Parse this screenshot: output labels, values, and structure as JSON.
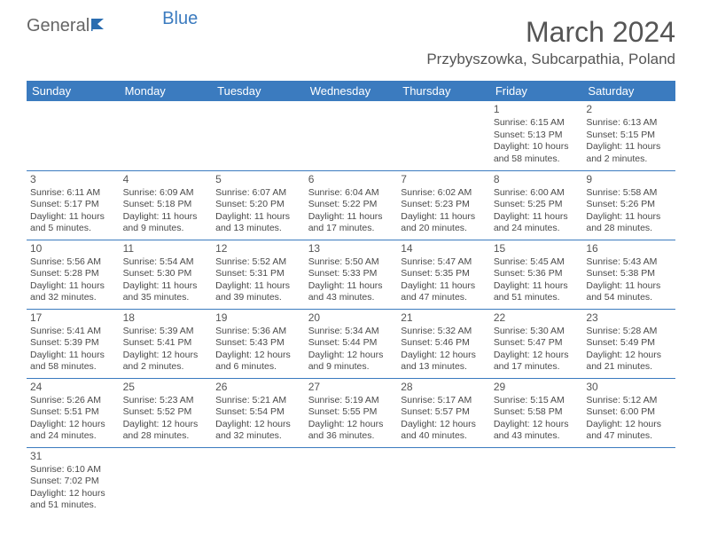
{
  "logo": {
    "part1": "General",
    "part2": "Blue"
  },
  "title": "March 2024",
  "location": "Przybyszowka, Subcarpathia, Poland",
  "colors": {
    "header_bg": "#3b7bbf",
    "header_text": "#ffffff",
    "border": "#3b7bbf",
    "body_text": "#4a4a4a",
    "title_text": "#555555",
    "background": "#ffffff"
  },
  "day_headers": [
    "Sunday",
    "Monday",
    "Tuesday",
    "Wednesday",
    "Thursday",
    "Friday",
    "Saturday"
  ],
  "weeks": [
    [
      null,
      null,
      null,
      null,
      null,
      {
        "n": "1",
        "rise": "Sunrise: 6:15 AM",
        "set": "Sunset: 5:13 PM",
        "dl1": "Daylight: 10 hours",
        "dl2": "and 58 minutes."
      },
      {
        "n": "2",
        "rise": "Sunrise: 6:13 AM",
        "set": "Sunset: 5:15 PM",
        "dl1": "Daylight: 11 hours",
        "dl2": "and 2 minutes."
      }
    ],
    [
      {
        "n": "3",
        "rise": "Sunrise: 6:11 AM",
        "set": "Sunset: 5:17 PM",
        "dl1": "Daylight: 11 hours",
        "dl2": "and 5 minutes."
      },
      {
        "n": "4",
        "rise": "Sunrise: 6:09 AM",
        "set": "Sunset: 5:18 PM",
        "dl1": "Daylight: 11 hours",
        "dl2": "and 9 minutes."
      },
      {
        "n": "5",
        "rise": "Sunrise: 6:07 AM",
        "set": "Sunset: 5:20 PM",
        "dl1": "Daylight: 11 hours",
        "dl2": "and 13 minutes."
      },
      {
        "n": "6",
        "rise": "Sunrise: 6:04 AM",
        "set": "Sunset: 5:22 PM",
        "dl1": "Daylight: 11 hours",
        "dl2": "and 17 minutes."
      },
      {
        "n": "7",
        "rise": "Sunrise: 6:02 AM",
        "set": "Sunset: 5:23 PM",
        "dl1": "Daylight: 11 hours",
        "dl2": "and 20 minutes."
      },
      {
        "n": "8",
        "rise": "Sunrise: 6:00 AM",
        "set": "Sunset: 5:25 PM",
        "dl1": "Daylight: 11 hours",
        "dl2": "and 24 minutes."
      },
      {
        "n": "9",
        "rise": "Sunrise: 5:58 AM",
        "set": "Sunset: 5:26 PM",
        "dl1": "Daylight: 11 hours",
        "dl2": "and 28 minutes."
      }
    ],
    [
      {
        "n": "10",
        "rise": "Sunrise: 5:56 AM",
        "set": "Sunset: 5:28 PM",
        "dl1": "Daylight: 11 hours",
        "dl2": "and 32 minutes."
      },
      {
        "n": "11",
        "rise": "Sunrise: 5:54 AM",
        "set": "Sunset: 5:30 PM",
        "dl1": "Daylight: 11 hours",
        "dl2": "and 35 minutes."
      },
      {
        "n": "12",
        "rise": "Sunrise: 5:52 AM",
        "set": "Sunset: 5:31 PM",
        "dl1": "Daylight: 11 hours",
        "dl2": "and 39 minutes."
      },
      {
        "n": "13",
        "rise": "Sunrise: 5:50 AM",
        "set": "Sunset: 5:33 PM",
        "dl1": "Daylight: 11 hours",
        "dl2": "and 43 minutes."
      },
      {
        "n": "14",
        "rise": "Sunrise: 5:47 AM",
        "set": "Sunset: 5:35 PM",
        "dl1": "Daylight: 11 hours",
        "dl2": "and 47 minutes."
      },
      {
        "n": "15",
        "rise": "Sunrise: 5:45 AM",
        "set": "Sunset: 5:36 PM",
        "dl1": "Daylight: 11 hours",
        "dl2": "and 51 minutes."
      },
      {
        "n": "16",
        "rise": "Sunrise: 5:43 AM",
        "set": "Sunset: 5:38 PM",
        "dl1": "Daylight: 11 hours",
        "dl2": "and 54 minutes."
      }
    ],
    [
      {
        "n": "17",
        "rise": "Sunrise: 5:41 AM",
        "set": "Sunset: 5:39 PM",
        "dl1": "Daylight: 11 hours",
        "dl2": "and 58 minutes."
      },
      {
        "n": "18",
        "rise": "Sunrise: 5:39 AM",
        "set": "Sunset: 5:41 PM",
        "dl1": "Daylight: 12 hours",
        "dl2": "and 2 minutes."
      },
      {
        "n": "19",
        "rise": "Sunrise: 5:36 AM",
        "set": "Sunset: 5:43 PM",
        "dl1": "Daylight: 12 hours",
        "dl2": "and 6 minutes."
      },
      {
        "n": "20",
        "rise": "Sunrise: 5:34 AM",
        "set": "Sunset: 5:44 PM",
        "dl1": "Daylight: 12 hours",
        "dl2": "and 9 minutes."
      },
      {
        "n": "21",
        "rise": "Sunrise: 5:32 AM",
        "set": "Sunset: 5:46 PM",
        "dl1": "Daylight: 12 hours",
        "dl2": "and 13 minutes."
      },
      {
        "n": "22",
        "rise": "Sunrise: 5:30 AM",
        "set": "Sunset: 5:47 PM",
        "dl1": "Daylight: 12 hours",
        "dl2": "and 17 minutes."
      },
      {
        "n": "23",
        "rise": "Sunrise: 5:28 AM",
        "set": "Sunset: 5:49 PM",
        "dl1": "Daylight: 12 hours",
        "dl2": "and 21 minutes."
      }
    ],
    [
      {
        "n": "24",
        "rise": "Sunrise: 5:26 AM",
        "set": "Sunset: 5:51 PM",
        "dl1": "Daylight: 12 hours",
        "dl2": "and 24 minutes."
      },
      {
        "n": "25",
        "rise": "Sunrise: 5:23 AM",
        "set": "Sunset: 5:52 PM",
        "dl1": "Daylight: 12 hours",
        "dl2": "and 28 minutes."
      },
      {
        "n": "26",
        "rise": "Sunrise: 5:21 AM",
        "set": "Sunset: 5:54 PM",
        "dl1": "Daylight: 12 hours",
        "dl2": "and 32 minutes."
      },
      {
        "n": "27",
        "rise": "Sunrise: 5:19 AM",
        "set": "Sunset: 5:55 PM",
        "dl1": "Daylight: 12 hours",
        "dl2": "and 36 minutes."
      },
      {
        "n": "28",
        "rise": "Sunrise: 5:17 AM",
        "set": "Sunset: 5:57 PM",
        "dl1": "Daylight: 12 hours",
        "dl2": "and 40 minutes."
      },
      {
        "n": "29",
        "rise": "Sunrise: 5:15 AM",
        "set": "Sunset: 5:58 PM",
        "dl1": "Daylight: 12 hours",
        "dl2": "and 43 minutes."
      },
      {
        "n": "30",
        "rise": "Sunrise: 5:12 AM",
        "set": "Sunset: 6:00 PM",
        "dl1": "Daylight: 12 hours",
        "dl2": "and 47 minutes."
      }
    ],
    [
      {
        "n": "31",
        "rise": "Sunrise: 6:10 AM",
        "set": "Sunset: 7:02 PM",
        "dl1": "Daylight: 12 hours",
        "dl2": "and 51 minutes."
      },
      null,
      null,
      null,
      null,
      null,
      null
    ]
  ]
}
